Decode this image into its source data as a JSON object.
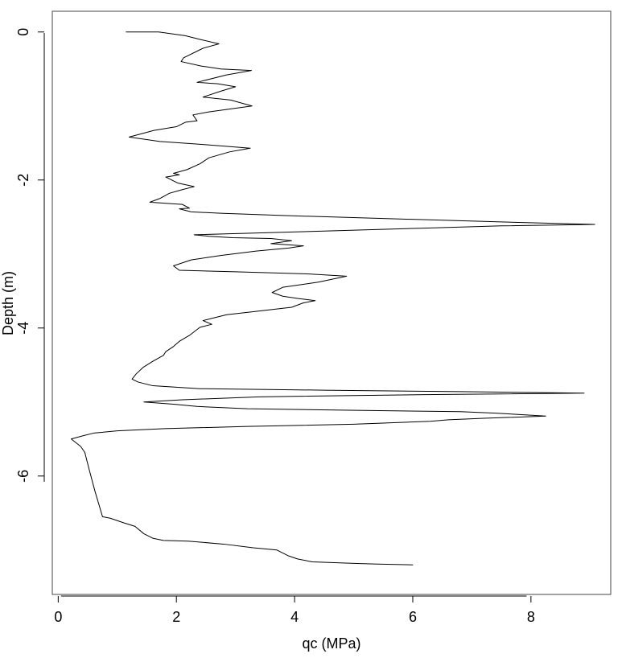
{
  "chart_data": {
    "type": "line",
    "title": "",
    "xlabel": "qc (MPa)",
    "ylabel": "Depth (m)",
    "xlim": [
      -0.1,
      9.35
    ],
    "ylim": [
      -7.6,
      0.28
    ],
    "x_ticks": [
      0,
      2,
      4,
      6,
      8
    ],
    "x_tick_labels": [
      "0",
      "2",
      "4",
      "6",
      "8"
    ],
    "y_ticks": [
      0,
      -2,
      -4,
      -6
    ],
    "y_tick_labels": [
      "0",
      "-2",
      "-4",
      "-6"
    ],
    "grid": false,
    "legend": "none",
    "line_color": "#000000",
    "frame_color": "#444444",
    "series": [
      {
        "points": [
          [
            1.15,
            0.0
          ],
          [
            1.7,
            0.0
          ],
          [
            2.15,
            -0.05
          ],
          [
            2.4,
            -0.1
          ],
          [
            2.72,
            -0.16
          ],
          [
            2.45,
            -0.22
          ],
          [
            2.12,
            -0.35
          ],
          [
            2.08,
            -0.4
          ],
          [
            2.42,
            -0.46
          ],
          [
            2.75,
            -0.5
          ],
          [
            3.27,
            -0.52
          ],
          [
            2.85,
            -0.58
          ],
          [
            2.35,
            -0.68
          ],
          [
            2.7,
            -0.7
          ],
          [
            3.0,
            -0.74
          ],
          [
            2.75,
            -0.8
          ],
          [
            2.45,
            -0.88
          ],
          [
            2.92,
            -0.92
          ],
          [
            3.28,
            -1.0
          ],
          [
            2.55,
            -1.08
          ],
          [
            2.28,
            -1.12
          ],
          [
            2.35,
            -1.2
          ],
          [
            2.15,
            -1.22
          ],
          [
            2.0,
            -1.28
          ],
          [
            1.62,
            -1.33
          ],
          [
            1.2,
            -1.42
          ],
          [
            1.72,
            -1.48
          ],
          [
            2.45,
            -1.52
          ],
          [
            3.25,
            -1.57
          ],
          [
            2.9,
            -1.62
          ],
          [
            2.55,
            -1.7
          ],
          [
            2.4,
            -1.78
          ],
          [
            2.18,
            -1.86
          ],
          [
            1.95,
            -1.91
          ],
          [
            2.05,
            -1.93
          ],
          [
            1.82,
            -1.96
          ],
          [
            2.02,
            -2.04
          ],
          [
            2.3,
            -2.09
          ],
          [
            2.1,
            -2.13
          ],
          [
            1.88,
            -2.18
          ],
          [
            1.72,
            -2.25
          ],
          [
            1.55,
            -2.3
          ],
          [
            2.1,
            -2.33
          ],
          [
            2.22,
            -2.38
          ],
          [
            2.05,
            -2.39
          ],
          [
            2.25,
            -2.43
          ],
          [
            2.75,
            -2.45
          ],
          [
            3.8,
            -2.48
          ],
          [
            5.5,
            -2.52
          ],
          [
            7.2,
            -2.56
          ],
          [
            9.08,
            -2.6
          ],
          [
            7.5,
            -2.62
          ],
          [
            6.2,
            -2.65
          ],
          [
            4.5,
            -2.69
          ],
          [
            3.2,
            -2.72
          ],
          [
            2.3,
            -2.74
          ],
          [
            2.55,
            -2.76
          ],
          [
            2.95,
            -2.78
          ],
          [
            3.6,
            -2.79
          ],
          [
            3.95,
            -2.82
          ],
          [
            3.6,
            -2.86
          ],
          [
            4.15,
            -2.89
          ],
          [
            3.9,
            -2.92
          ],
          [
            3.35,
            -2.96
          ],
          [
            2.75,
            -3.02
          ],
          [
            2.25,
            -3.08
          ],
          [
            1.95,
            -3.16
          ],
          [
            2.05,
            -3.22
          ],
          [
            3.0,
            -3.24
          ],
          [
            4.25,
            -3.27
          ],
          [
            4.88,
            -3.3
          ],
          [
            4.4,
            -3.38
          ],
          [
            3.8,
            -3.45
          ],
          [
            3.62,
            -3.52
          ],
          [
            3.8,
            -3.57
          ],
          [
            4.05,
            -3.6
          ],
          [
            4.35,
            -3.63
          ],
          [
            4.15,
            -3.66
          ],
          [
            3.95,
            -3.72
          ],
          [
            3.3,
            -3.78
          ],
          [
            2.85,
            -3.82
          ],
          [
            2.65,
            -3.86
          ],
          [
            2.45,
            -3.9
          ],
          [
            2.6,
            -3.95
          ],
          [
            2.4,
            -3.99
          ],
          [
            2.35,
            -4.02
          ],
          [
            2.22,
            -4.1
          ],
          [
            2.05,
            -4.18
          ],
          [
            1.95,
            -4.25
          ],
          [
            1.82,
            -4.32
          ],
          [
            1.78,
            -4.37
          ],
          [
            1.6,
            -4.45
          ],
          [
            1.44,
            -4.53
          ],
          [
            1.32,
            -4.62
          ],
          [
            1.25,
            -4.69
          ],
          [
            1.35,
            -4.73
          ],
          [
            1.6,
            -4.78
          ],
          [
            2.4,
            -4.82
          ],
          [
            4.5,
            -4.84
          ],
          [
            6.8,
            -4.86
          ],
          [
            8.9,
            -4.88
          ],
          [
            6.2,
            -4.9
          ],
          [
            3.4,
            -4.93
          ],
          [
            2.1,
            -4.97
          ],
          [
            1.45,
            -5.0
          ],
          [
            1.95,
            -5.03
          ],
          [
            2.35,
            -5.06
          ],
          [
            3.2,
            -5.09
          ],
          [
            4.8,
            -5.11
          ],
          [
            6.8,
            -5.13
          ],
          [
            7.4,
            -5.15
          ],
          [
            8.25,
            -5.19
          ],
          [
            7.2,
            -5.22
          ],
          [
            6.6,
            -5.24
          ],
          [
            6.3,
            -5.26
          ],
          [
            5.0,
            -5.3
          ],
          [
            3.2,
            -5.33
          ],
          [
            1.8,
            -5.36
          ],
          [
            1.0,
            -5.39
          ],
          [
            0.6,
            -5.42
          ],
          [
            0.4,
            -5.46
          ],
          [
            0.22,
            -5.5
          ],
          [
            0.38,
            -5.6
          ],
          [
            0.45,
            -5.68
          ],
          [
            0.52,
            -5.9
          ],
          [
            0.62,
            -6.2
          ],
          [
            0.75,
            -6.55
          ],
          [
            0.88,
            -6.57
          ],
          [
            1.1,
            -6.63
          ],
          [
            1.3,
            -6.68
          ],
          [
            1.45,
            -6.78
          ],
          [
            1.6,
            -6.84
          ],
          [
            1.78,
            -6.87
          ],
          [
            2.2,
            -6.88
          ],
          [
            2.8,
            -6.92
          ],
          [
            3.3,
            -6.97
          ],
          [
            3.7,
            -7.0
          ],
          [
            3.9,
            -7.08
          ],
          [
            4.05,
            -7.12
          ],
          [
            4.3,
            -7.16
          ],
          [
            5.0,
            -7.18
          ],
          [
            5.4,
            -7.19
          ],
          [
            6.0,
            -7.2
          ]
        ]
      }
    ]
  }
}
